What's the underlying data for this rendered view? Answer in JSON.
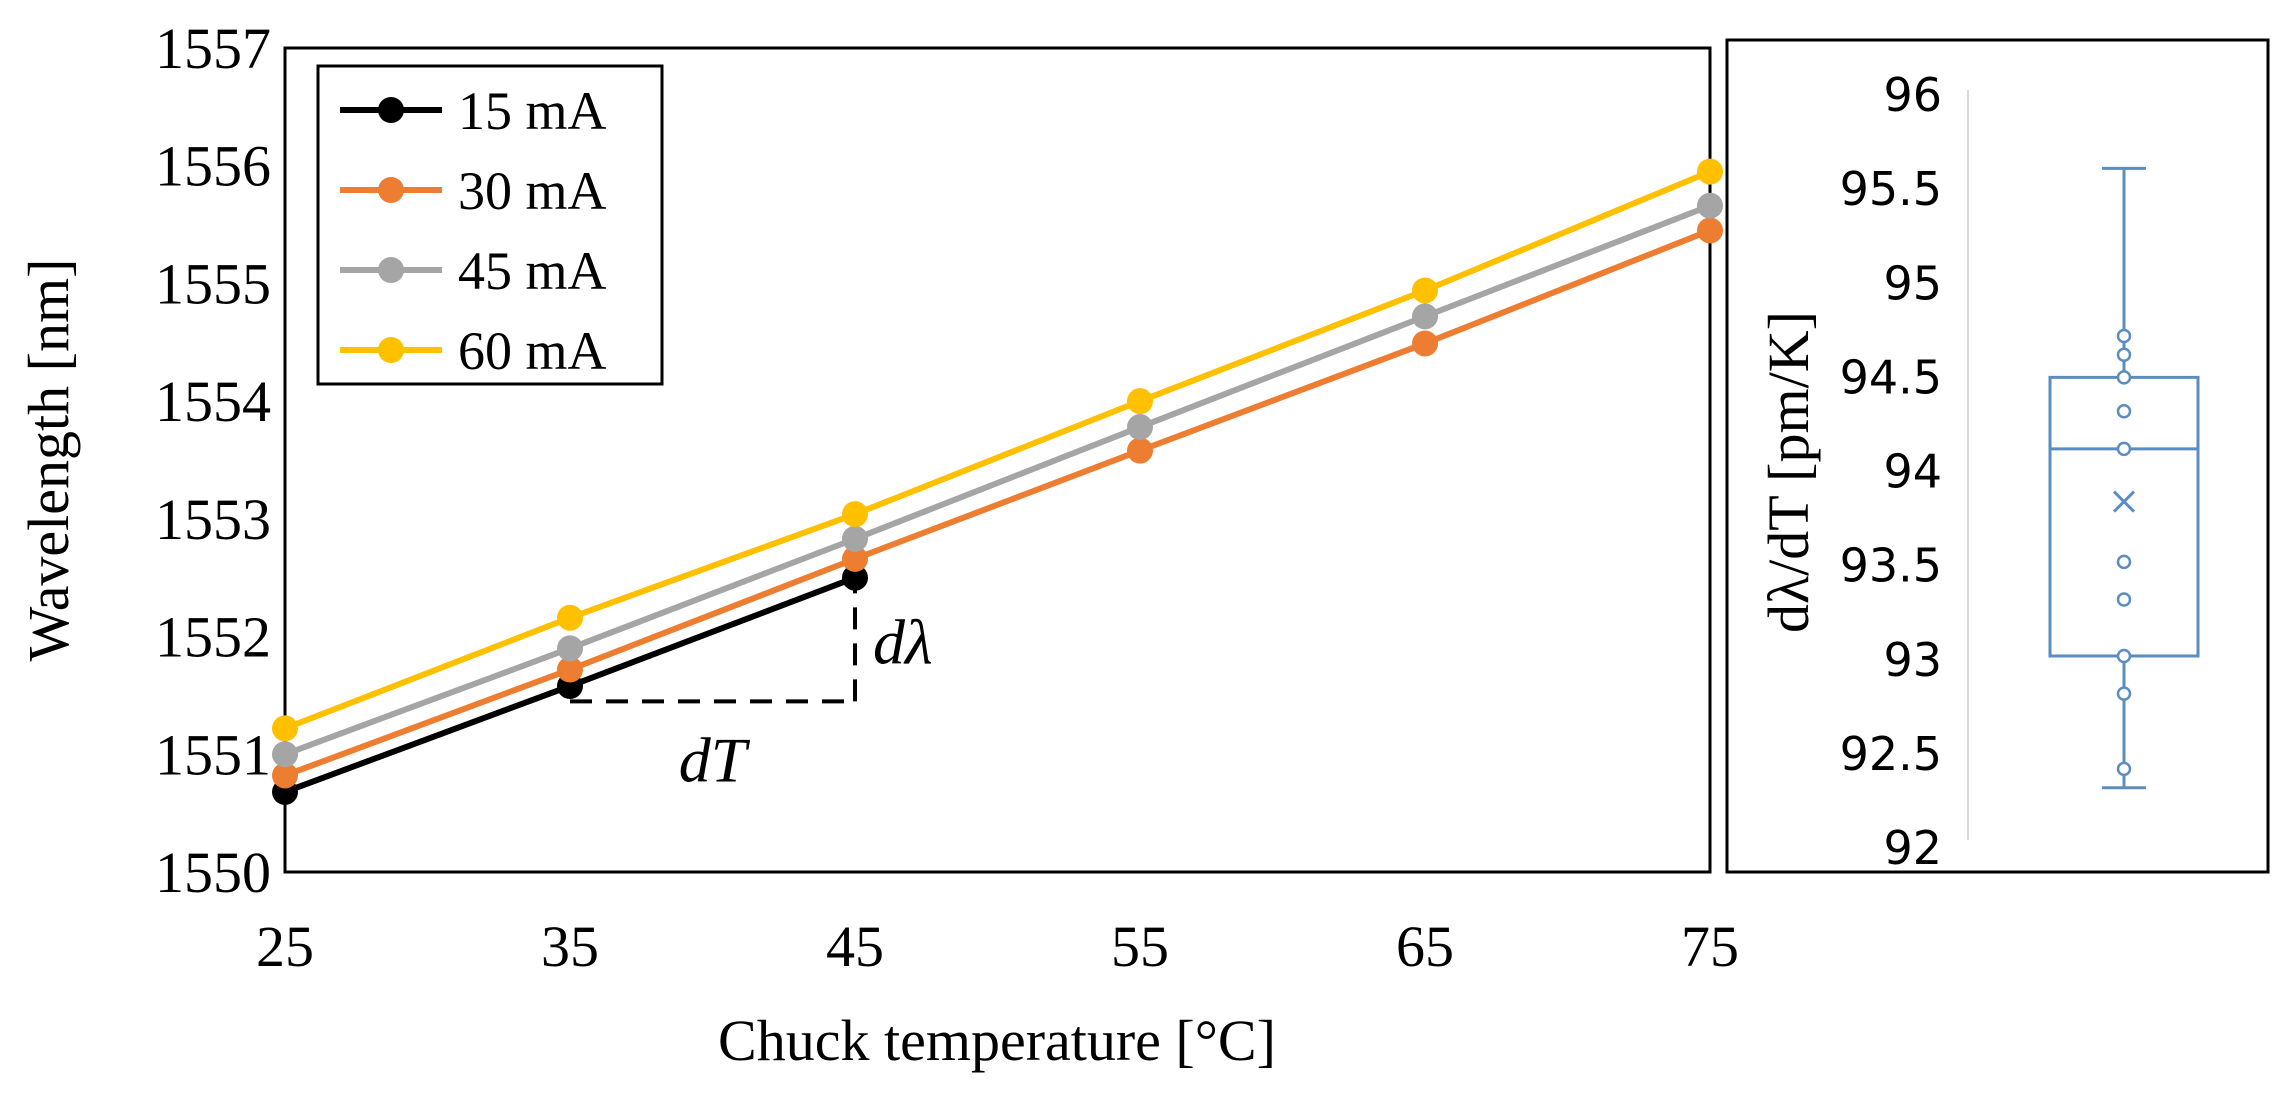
{
  "chart_data": [
    {
      "type": "line",
      "title": "",
      "xlabel": "Chuck temperature [°C]",
      "ylabel": "Wavelength [nm]",
      "x": [
        25,
        35,
        45,
        55,
        65,
        75
      ],
      "xlim": [
        25,
        75
      ],
      "ylim": [
        1550,
        1557
      ],
      "x_ticks": [
        "25",
        "35",
        "45",
        "55",
        "65",
        "75"
      ],
      "y_ticks": [
        "1550",
        "1551",
        "1552",
        "1553",
        "1554",
        "1555",
        "1556",
        "1557"
      ],
      "grid": false,
      "legend_position": "top-left",
      "series": [
        {
          "name": "15 mA",
          "color": "#000000",
          "x": [
            25,
            35,
            45
          ],
          "values": [
            1550.68,
            1551.58,
            1552.5
          ]
        },
        {
          "name": "30 mA",
          "color": "#ED7D31",
          "x": [
            25,
            35,
            45,
            55,
            65,
            75
          ],
          "values": [
            1550.82,
            1551.72,
            1552.66,
            1553.58,
            1554.49,
            1555.45
          ]
        },
        {
          "name": "45 mA",
          "color": "#A5A5A5",
          "x": [
            25,
            35,
            45,
            55,
            65,
            75
          ],
          "values": [
            1551.0,
            1551.9,
            1552.83,
            1553.78,
            1554.72,
            1555.66
          ]
        },
        {
          "name": "60 mA",
          "color": "#FFC000",
          "x": [
            25,
            35,
            45,
            55,
            65,
            75
          ],
          "values": [
            1551.22,
            1552.16,
            1553.04,
            1554.0,
            1554.94,
            1555.95
          ]
        }
      ],
      "annotations": {
        "slope_triangle": {
          "x_start": 35,
          "x_end": 45,
          "y_base": 1551.45,
          "y_top": 1552.5
        },
        "d_lambda_label": "dλ",
        "dT_label": "dT"
      }
    },
    {
      "type": "box",
      "title": "",
      "ylabel": "dλ/dT [pm/K]",
      "ylim": [
        92,
        96
      ],
      "y_ticks": [
        "92",
        "92.5",
        "93",
        "93.5",
        "94",
        "94.5",
        "95",
        "95.5",
        "96"
      ],
      "color": "#5B8DC0",
      "min": 92.32,
      "q1": 93.02,
      "median": 94.12,
      "mean": 93.84,
      "q3": 94.5,
      "max": 95.61,
      "points": [
        92.42,
        92.82,
        93.02,
        93.32,
        93.52,
        94.12,
        94.32,
        94.5,
        94.62,
        94.72
      ]
    }
  ]
}
